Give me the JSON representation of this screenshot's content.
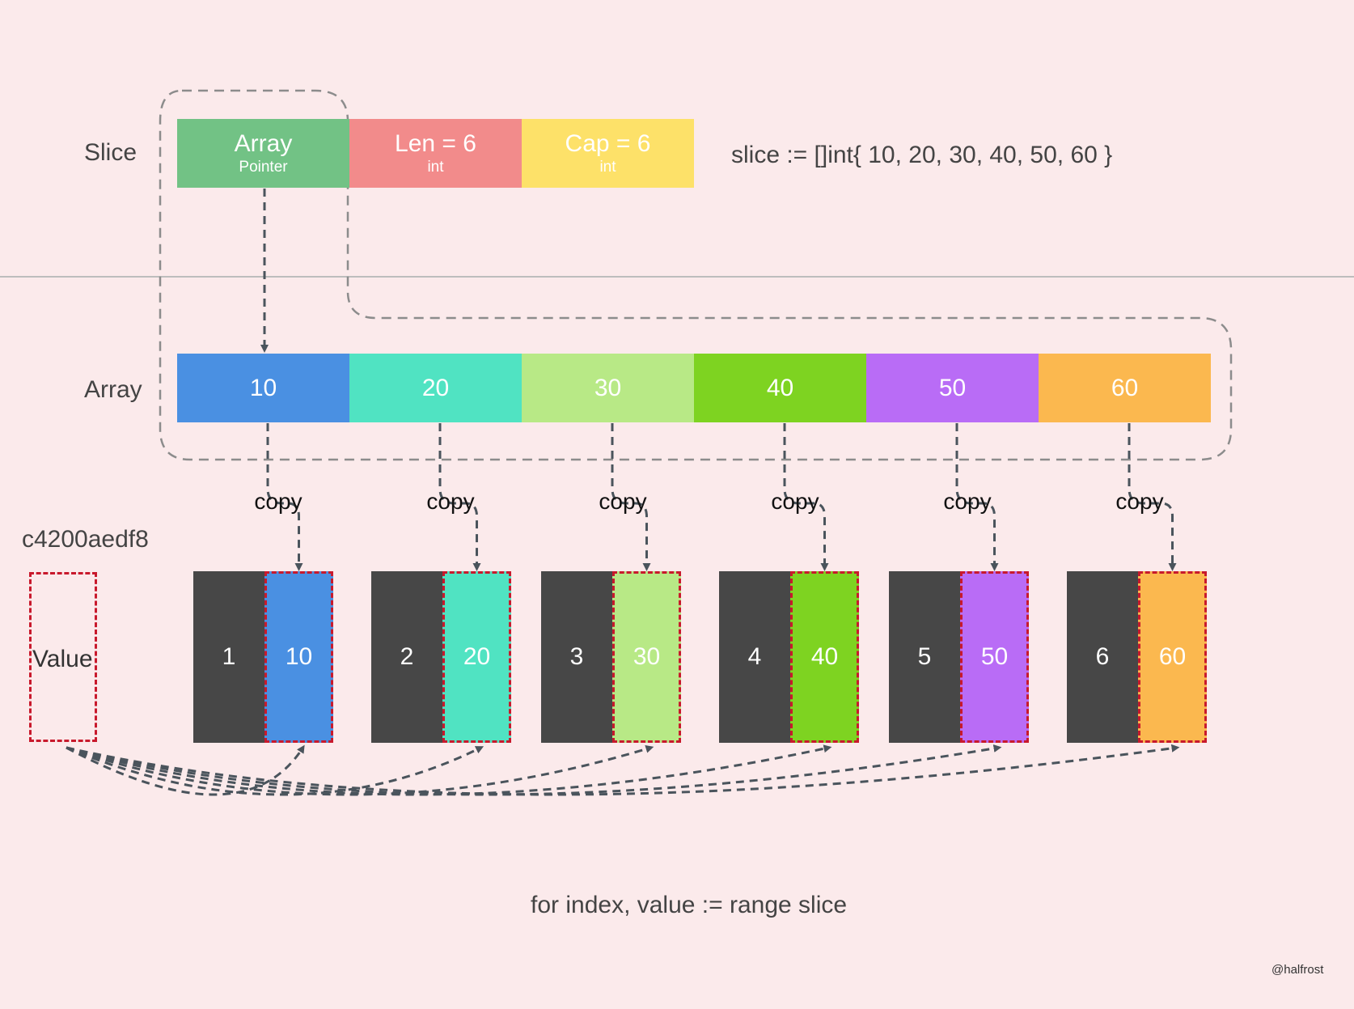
{
  "labels": {
    "slice": "Slice",
    "array": "Array",
    "address": "c4200aedf8",
    "value": "Value",
    "slice_decl": "slice := []int{ 10, 20, 30, 40, 50, 60 }",
    "loop": "for index, value := range slice",
    "credit": "@halfrost",
    "copy": "copy"
  },
  "slice_header": [
    {
      "main": "Array",
      "sub": "Pointer",
      "color": "#72c285"
    },
    {
      "main": "Len = 6",
      "sub": "int",
      "color": "#f28b8b"
    },
    {
      "main": "Cap = 6",
      "sub": "int",
      "color": "#fde169"
    }
  ],
  "array": [
    {
      "value": "10",
      "color": "#4a90e2"
    },
    {
      "value": "20",
      "color": "#50e3c2"
    },
    {
      "value": "30",
      "color": "#b8e986"
    },
    {
      "value": "40",
      "color": "#7ed321"
    },
    {
      "value": "50",
      "color": "#b96cf6"
    },
    {
      "value": "60",
      "color": "#fbb84f"
    }
  ],
  "iterations": [
    {
      "index": "1",
      "value": "10",
      "color": "#4a90e2"
    },
    {
      "index": "2",
      "value": "20",
      "color": "#50e3c2"
    },
    {
      "index": "3",
      "value": "30",
      "color": "#b8e986"
    },
    {
      "index": "4",
      "value": "40",
      "color": "#7ed321"
    },
    {
      "index": "5",
      "value": "50",
      "color": "#b96cf6"
    },
    {
      "index": "6",
      "value": "60",
      "color": "#fbb84f"
    }
  ],
  "colors": {
    "background": "#fbeaeb",
    "index_cell": "#474747",
    "dashed_red": "#c8192c",
    "arrow": "#4a545c",
    "outline": "#8c8c8c"
  }
}
